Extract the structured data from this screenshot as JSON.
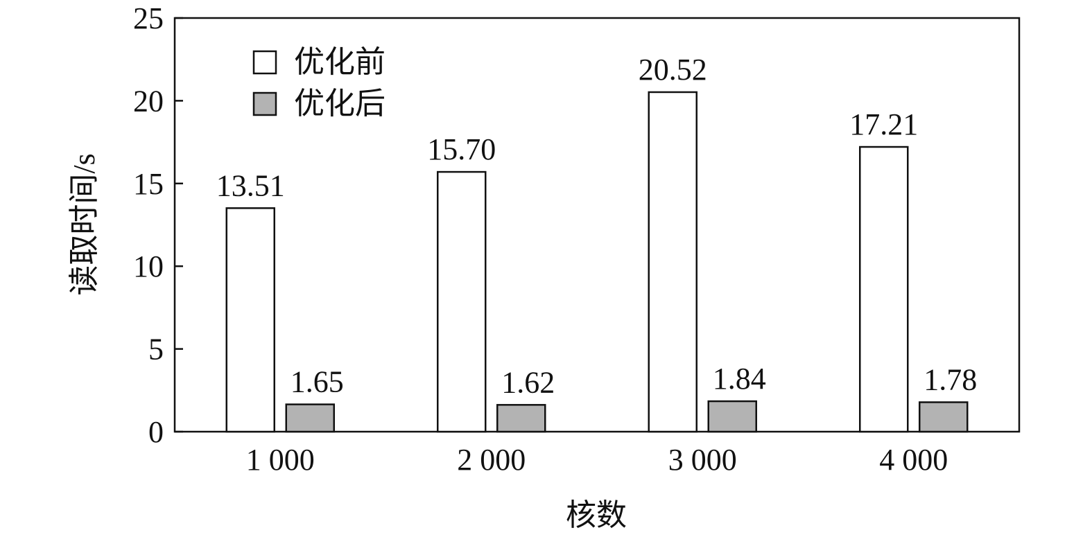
{
  "chart_data": {
    "type": "bar",
    "title": "",
    "xlabel": "核数",
    "ylabel": "读取时间/s",
    "categories": [
      "1 000",
      "2 000",
      "3 000",
      "4 000"
    ],
    "series": [
      {
        "name": "优化前",
        "values": [
          13.51,
          15.7,
          20.52,
          17.21
        ],
        "labels": [
          "13.51",
          "15.70",
          "20.52",
          "17.21"
        ],
        "fill": "#ffffff",
        "stroke": "#111111"
      },
      {
        "name": "优化后",
        "values": [
          1.65,
          1.62,
          1.84,
          1.78
        ],
        "labels": [
          "1.65",
          "1.62",
          "1.84",
          "1.78"
        ],
        "fill": "#b3b3b3",
        "stroke": "#111111"
      }
    ],
    "ylim": [
      0,
      25
    ],
    "yticks": [
      0,
      5,
      10,
      15,
      20,
      25
    ],
    "ytick_labels": [
      "0",
      "5",
      "10",
      "15",
      "20",
      "25"
    ],
    "grid": false,
    "legend_position": "top-left"
  }
}
